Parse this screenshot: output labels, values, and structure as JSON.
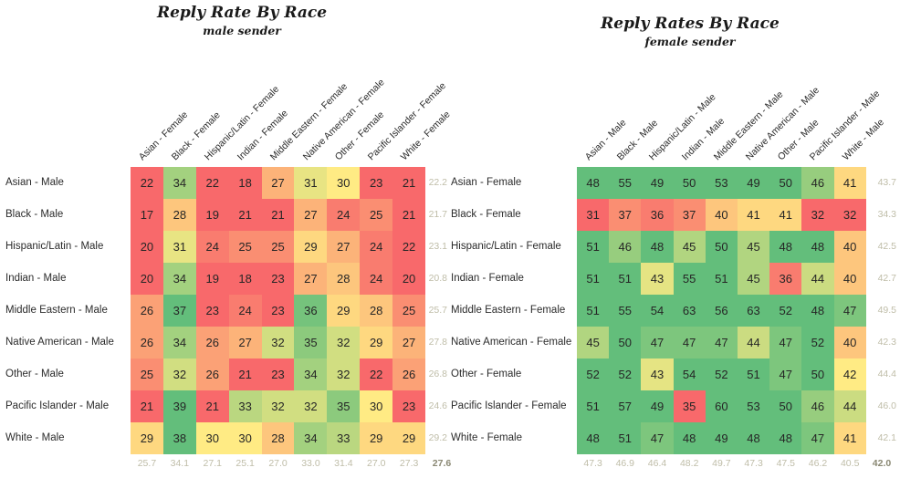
{
  "colors": {
    "scale_red": "#F8696B",
    "scale_yellow": "#FFEB84",
    "scale_green": "#63BE7B",
    "average_text": "#BFBDA8",
    "overall_text": "#8A8873",
    "label_text": "#2B2B2B",
    "title_text": "#1A1A1A"
  },
  "chart_data": [
    {
      "type": "heatmap",
      "title": "Reply Rate By Race",
      "subtitle": "male sender",
      "columns": [
        "Asian - Female",
        "Black - Female",
        "Hispanic/Latin - Female",
        "Indian - Female",
        "Middle Eastern - Female",
        "Native American - Female",
        "Other - Female",
        "Pacific Islander - Female",
        "White - Female"
      ],
      "rows": [
        "Asian - Male",
        "Black - Male",
        "Hispanic/Latin - Male",
        "Indian - Male",
        "Middle Eastern - Male",
        "Native American - Male",
        "Other - Male",
        "Pacific Islander - Male",
        "White - Male"
      ],
      "values": [
        [
          22,
          34,
          22,
          18,
          27,
          31,
          30,
          23,
          21
        ],
        [
          17,
          28,
          19,
          21,
          21,
          27,
          24,
          25,
          21
        ],
        [
          20,
          31,
          24,
          25,
          25,
          29,
          27,
          24,
          22
        ],
        [
          20,
          34,
          19,
          18,
          23,
          27,
          28,
          24,
          20
        ],
        [
          26,
          37,
          23,
          24,
          23,
          36,
          29,
          28,
          25
        ],
        [
          26,
          34,
          26,
          27,
          32,
          35,
          32,
          29,
          27
        ],
        [
          25,
          32,
          26,
          21,
          23,
          34,
          32,
          22,
          26
        ],
        [
          21,
          39,
          21,
          33,
          32,
          32,
          35,
          30,
          23
        ],
        [
          29,
          38,
          30,
          30,
          28,
          34,
          33,
          29,
          29
        ]
      ],
      "row_averages": [
        "22.2",
        "21.7",
        "23.1",
        "20.8",
        "25.7",
        "27.8",
        "26.8",
        "24.6",
        "29.2"
      ],
      "column_averages": [
        "25.7",
        "34.1",
        "27.1",
        "25.1",
        "27.0",
        "33.0",
        "31.4",
        "27.0",
        "27.3"
      ],
      "overall_average": "27.6",
      "color_scale": {
        "red_below": 23,
        "yellow_at": 30,
        "green_above": 36.8
      },
      "legend": "none",
      "grid": "off"
    },
    {
      "type": "heatmap",
      "title": "Reply Rates By Race",
      "subtitle": "female sender",
      "columns": [
        "Asian - Male",
        "Black - Male",
        "Hispanic/Latin - Male",
        "Indian - Male",
        "Middle Eastern - Male",
        "Native American - Male",
        "Other - Male",
        "Pacific Islander - Male",
        "White - Male"
      ],
      "rows": [
        "Asian - Female",
        "Black - Female",
        "Hispanic/Latin - Female",
        "Indian - Female",
        "Middle Eastern - Female",
        "Native American - Female",
        "Other - Female",
        "Pacific Islander - Female",
        "White - Female"
      ],
      "values": [
        [
          48,
          55,
          49,
          50,
          53,
          49,
          50,
          46,
          41
        ],
        [
          31,
          37,
          36,
          37,
          40,
          41,
          41,
          32,
          32
        ],
        [
          51,
          46,
          48,
          45,
          50,
          45,
          48,
          48,
          40
        ],
        [
          51,
          51,
          43,
          55,
          51,
          45,
          36,
          44,
          40
        ],
        [
          51,
          55,
          54,
          63,
          56,
          63,
          52,
          48,
          47
        ],
        [
          45,
          50,
          47,
          47,
          47,
          44,
          47,
          52,
          40
        ],
        [
          52,
          52,
          43,
          54,
          52,
          51,
          47,
          50,
          42
        ],
        [
          51,
          57,
          49,
          35,
          60,
          53,
          50,
          46,
          44
        ],
        [
          48,
          51,
          47,
          48,
          49,
          48,
          48,
          47,
          41
        ]
      ],
      "row_averages": [
        "43.7",
        "34.3",
        "42.5",
        "42.7",
        "49.5",
        "42.3",
        "44.4",
        "46.0",
        "42.1"
      ],
      "column_averages": [
        "47.3",
        "46.9",
        "46.4",
        "48.2",
        "49.7",
        "47.3",
        "47.5",
        "46.2",
        "40.5"
      ],
      "overall_average": "42.0",
      "color_scale": {
        "red_below": 35,
        "yellow_at": 42,
        "green_above": 48
      },
      "legend": "none",
      "grid": "off"
    }
  ]
}
